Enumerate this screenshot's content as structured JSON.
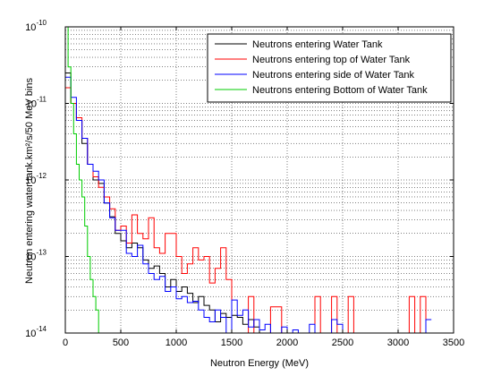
{
  "chart_data": {
    "type": "line",
    "subtype": "step histogram",
    "xlabel": "Neutron Energy (MeV)",
    "ylabel": "Neutron entering water tank.km²/s/50 MeV bins",
    "xlim": [
      0,
      3500
    ],
    "ylim": [
      1e-14,
      1e-10
    ],
    "yscale": "log",
    "grid": "dotted",
    "legend_position": "top-right",
    "x_ticks": [
      0,
      500,
      1000,
      1500,
      2000,
      2500,
      3000,
      3500
    ],
    "y_ticks": [
      1e-14,
      1e-13,
      1e-12,
      1e-11,
      1e-10
    ],
    "y_tick_bases": [
      "10",
      "10",
      "10",
      "10",
      "10"
    ],
    "y_tick_exps": [
      "-14",
      "-13",
      "-12",
      "-11",
      "-10"
    ],
    "bin_width": 50,
    "series": [
      {
        "name": "Neutrons entering Water Tank",
        "color": "#000000",
        "edges": [
          0,
          50,
          100,
          150,
          200,
          250,
          300,
          350,
          400,
          450,
          500,
          550,
          600,
          650,
          700,
          750,
          800,
          850,
          900,
          950,
          1000,
          1050,
          1100,
          1150,
          1200,
          1250,
          1300,
          1350,
          1400,
          1450,
          1500,
          1550,
          1600,
          1650,
          1700,
          1750,
          1800
        ],
        "values": [
          2.5e-11,
          1e-11,
          6e-12,
          3e-12,
          1.6e-12,
          1e-12,
          9e-13,
          5e-13,
          3.3e-13,
          2e-13,
          1.6e-13,
          1.3e-13,
          1.5e-13,
          1.3e-13,
          9e-14,
          7e-14,
          7.5e-14,
          6e-14,
          4e-14,
          5e-14,
          3.5e-14,
          4e-14,
          3.3e-14,
          2.5e-14,
          3e-14,
          2.3e-14,
          2e-14,
          1.4e-14,
          1.8e-14,
          1.6e-14,
          1.7e-14,
          1.6e-14,
          1.3e-14,
          1.5e-14,
          1.2e-14,
          1e-14
        ]
      },
      {
        "name": "Neutrons entering top of Water Tank",
        "color": "#ff0000",
        "edges": [
          0,
          50,
          100,
          150,
          200,
          250,
          300,
          350,
          400,
          450,
          500,
          550,
          600,
          650,
          700,
          750,
          800,
          850,
          900,
          950,
          1000,
          1050,
          1100,
          1150,
          1200,
          1250,
          1300,
          1350,
          1400,
          1450,
          1500,
          1550,
          1600,
          1650,
          1700,
          1750,
          1800,
          1850,
          1900,
          1950,
          2000,
          2050,
          2100,
          2150,
          2200,
          2250,
          2300,
          2350,
          2400,
          2450,
          2500,
          2550,
          2600,
          2650,
          2700,
          2750,
          2800,
          2850,
          2900,
          2950,
          3000,
          3050,
          3100,
          3150,
          3200,
          3250,
          3300
        ],
        "values": [
          1.6e-11,
          1e-11,
          6.5e-12,
          3.5e-12,
          1.6e-12,
          1.1e-12,
          8e-13,
          6e-13,
          4.2e-13,
          2.2e-13,
          2.5e-13,
          1.5e-13,
          3.5e-13,
          2e-13,
          1.7e-13,
          3.2e-13,
          1.3e-13,
          1.1e-13,
          2e-13,
          2e-13,
          1e-13,
          6e-14,
          8e-14,
          1.3e-13,
          9e-14,
          1e-13,
          4.5e-14,
          7e-14,
          1.3e-13,
          5e-14,
          1e-14,
          1e-14,
          1e-14,
          3e-14,
          1e-14,
          1e-14,
          1e-14,
          2.2e-14,
          2.2e-14,
          1e-14,
          1e-14,
          1e-14,
          1e-14,
          1e-14,
          1e-14,
          3e-14,
          1e-14,
          1e-14,
          3e-14,
          1e-14,
          1e-14,
          3e-14,
          1e-14,
          1e-14,
          1e-14,
          1e-14,
          1e-14,
          1e-14,
          1e-14,
          1e-14,
          1e-14,
          1e-14,
          3e-14,
          1e-14,
          3e-14,
          1e-14
        ]
      },
      {
        "name": "Neutrons entering side of Water Tank",
        "color": "#0000ff",
        "edges": [
          0,
          50,
          100,
          150,
          200,
          250,
          300,
          350,
          400,
          450,
          500,
          550,
          600,
          650,
          700,
          750,
          800,
          850,
          900,
          950,
          1000,
          1050,
          1100,
          1150,
          1200,
          1250,
          1300,
          1350,
          1400,
          1450,
          1500,
          1550,
          1600,
          1650,
          1700,
          1750,
          1800,
          1850,
          1900,
          1950,
          2000,
          2050,
          2100,
          2150,
          2200,
          2250,
          2300,
          2350,
          2400,
          2450,
          2500,
          2550,
          2600,
          2650,
          2700,
          2750,
          2800,
          2850,
          2900,
          2950,
          3000,
          3050,
          3100,
          3150,
          3200,
          3250,
          3300
        ],
        "values": [
          2.2e-11,
          1.2e-11,
          6e-12,
          3.5e-12,
          1.6e-12,
          1.3e-12,
          1e-12,
          5e-13,
          3.2e-13,
          2.2e-13,
          2.2e-13,
          1.1e-13,
          1e-13,
          1.4e-13,
          8e-14,
          6e-14,
          5e-14,
          5.5e-14,
          3.5e-14,
          4e-14,
          2.8e-14,
          3e-14,
          2.5e-14,
          2.6e-14,
          2e-14,
          1.6e-14,
          1.4e-14,
          2e-14,
          1.6e-14,
          1e-14,
          2.7e-14,
          1.7e-14,
          2e-14,
          1.2e-14,
          1.5e-14,
          1.1e-14,
          1.3e-14,
          1e-14,
          1e-14,
          1.2e-14,
          1e-14,
          1.1e-14,
          1e-14,
          1e-14,
          1.3e-14,
          1e-14,
          1e-14,
          1e-14,
          1.5e-14,
          1.3e-14,
          1e-14,
          1e-14,
          1e-14,
          1e-14,
          1e-14,
          1e-14,
          1e-14,
          1e-14,
          1e-14,
          1e-14,
          1e-14,
          1e-14,
          1e-14,
          1e-14,
          1e-14,
          1.5e-14
        ]
      },
      {
        "name": "Neutrons entering Bottom of Water Tank",
        "color": "#00cc00",
        "edges": [
          0,
          25,
          50,
          75,
          100,
          125,
          150,
          175,
          200,
          225,
          250,
          275,
          300,
          325,
          350
        ],
        "values": [
          1e-10,
          3e-11,
          1e-11,
          4e-12,
          1.6e-12,
          1e-12,
          6e-13,
          2.5e-13,
          1e-13,
          5e-14,
          3e-14,
          2e-14,
          1e-14,
          1e-14
        ]
      }
    ]
  }
}
